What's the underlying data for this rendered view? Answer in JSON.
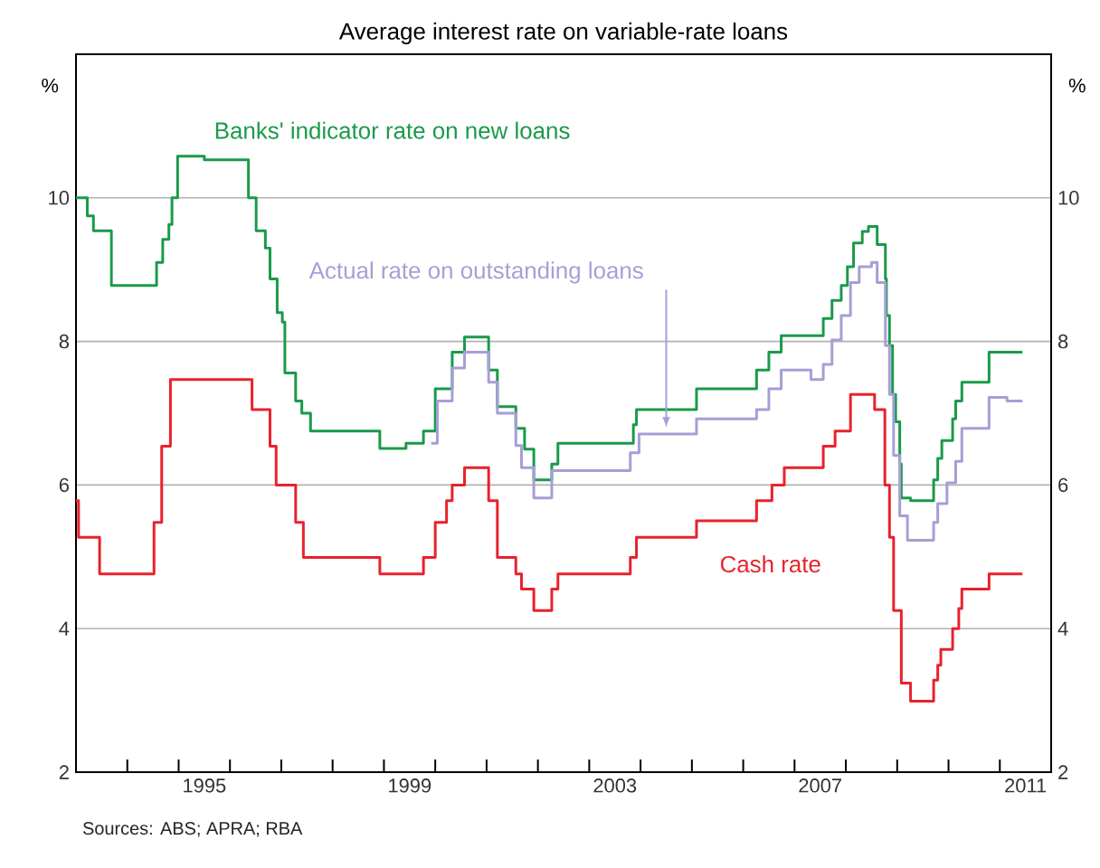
{
  "chart_data": {
    "type": "step",
    "title": "Average interest rate on variable-rate loans",
    "ylabel": "%",
    "y2label": "%",
    "xlim": [
      1993,
      2012
    ],
    "xticks": [
      {
        "value": 1994,
        "label": null
      },
      {
        "value": 1995,
        "label": null
      },
      {
        "value": 1995.5,
        "label": "1995"
      },
      {
        "value": 1996,
        "label": null
      },
      {
        "value": 1997,
        "label": null
      },
      {
        "value": 1998,
        "label": null
      },
      {
        "value": 1999,
        "label": null
      },
      {
        "value": 1999.5,
        "label": "1999"
      },
      {
        "value": 2000,
        "label": null
      },
      {
        "value": 2001,
        "label": null
      },
      {
        "value": 2002,
        "label": null
      },
      {
        "value": 2003,
        "label": null
      },
      {
        "value": 2003.5,
        "label": "2003"
      },
      {
        "value": 2004,
        "label": null
      },
      {
        "value": 2005,
        "label": null
      },
      {
        "value": 2006,
        "label": null
      },
      {
        "value": 2007,
        "label": null
      },
      {
        "value": 2007.5,
        "label": "2007"
      },
      {
        "value": 2008,
        "label": null
      },
      {
        "value": 2009,
        "label": null
      },
      {
        "value": 2010,
        "label": null
      },
      {
        "value": 2011,
        "label": null
      },
      {
        "value": 2011.5,
        "label": "2011"
      }
    ],
    "ylim": [
      2,
      12
    ],
    "yticks": [
      2,
      4,
      6,
      8,
      10
    ],
    "y2lim": [
      2,
      12
    ],
    "y2ticks": [
      2,
      4,
      6,
      8,
      10
    ],
    "grid": "y",
    "series": [
      {
        "name": "Banks' indicator rate on new loans",
        "color": "#1a9a4a",
        "x": [
          1993.0,
          1993.22,
          1993.34,
          1993.69,
          1994.57,
          1994.69,
          1994.81,
          1994.87,
          1994.98,
          1995.5,
          1996.36,
          1996.51,
          1996.69,
          1996.78,
          1996.92,
          1997.02,
          1997.07,
          1997.28,
          1997.4,
          1997.57,
          1998.92,
          1999.43,
          1999.77,
          2000.0,
          2000.33,
          2000.57,
          2001.04,
          2001.21,
          2001.57,
          2001.74,
          2001.92,
          2002.27,
          2002.39,
          2003.86,
          2003.92,
          2005.09,
          2006.26,
          2006.5,
          2006.74,
          2007.56,
          2007.73,
          2007.91,
          2008.03,
          2008.15,
          2008.32,
          2008.44,
          2008.61,
          2008.77,
          2008.79,
          2008.85,
          2008.91,
          2008.97,
          2009.05,
          2009.08,
          2009.26,
          2009.71,
          2009.79,
          2009.87,
          2010.08,
          2010.14,
          2010.26,
          2010.79,
          2011.44
        ],
        "values": [
          10.0,
          9.75,
          9.54,
          8.78,
          9.1,
          9.42,
          9.63,
          10.0,
          10.58,
          10.53,
          10.0,
          9.54,
          9.3,
          8.87,
          8.4,
          8.27,
          7.56,
          7.17,
          7.0,
          6.75,
          6.51,
          6.58,
          6.75,
          7.34,
          7.85,
          8.06,
          7.6,
          7.09,
          6.79,
          6.5,
          6.07,
          6.29,
          6.58,
          6.84,
          7.05,
          7.34,
          7.6,
          7.85,
          8.08,
          8.32,
          8.57,
          8.78,
          9.04,
          9.37,
          9.53,
          9.6,
          9.35,
          8.87,
          8.36,
          7.94,
          7.26,
          6.88,
          6.29,
          5.82,
          5.78,
          6.07,
          6.37,
          6.62,
          6.92,
          7.17,
          7.43,
          7.85,
          7.85
        ]
      },
      {
        "name": "Actual rate on outstanding loans",
        "color": "#a59fd6",
        "x": [
          1999.92,
          2000.04,
          2000.33,
          2000.57,
          2001.04,
          2001.21,
          2001.57,
          2001.68,
          2001.92,
          2002.27,
          2003.8,
          2003.97,
          2005.09,
          2006.26,
          2006.5,
          2006.74,
          2007.32,
          2007.56,
          2007.73,
          2007.91,
          2008.09,
          2008.26,
          2008.5,
          2008.61,
          2008.77,
          2008.85,
          2008.93,
          2009.05,
          2009.2,
          2009.71,
          2009.79,
          2009.97,
          2010.14,
          2010.26,
          2010.79,
          2011.14,
          2011.44
        ],
        "values": [
          6.58,
          7.17,
          7.63,
          7.85,
          7.43,
          7.0,
          6.55,
          6.24,
          5.82,
          6.2,
          6.45,
          6.71,
          6.92,
          7.05,
          7.34,
          7.6,
          7.47,
          7.68,
          8.02,
          8.36,
          8.82,
          9.04,
          9.1,
          8.82,
          7.94,
          7.26,
          6.41,
          5.57,
          5.23,
          5.48,
          5.74,
          6.03,
          6.33,
          6.79,
          7.22,
          7.17,
          7.17
        ]
      },
      {
        "name": "Cash rate",
        "color": "#e8222d",
        "x": [
          1993.0,
          1993.05,
          1993.46,
          1994.52,
          1994.67,
          1994.84,
          1996.43,
          1996.78,
          1996.9,
          1997.28,
          1997.43,
          1998.92,
          1999.77,
          2000.0,
          2000.22,
          2000.33,
          2000.57,
          2001.04,
          2001.21,
          2001.57,
          2001.68,
          2001.92,
          2002.27,
          2002.39,
          2003.8,
          2003.92,
          2005.09,
          2006.26,
          2006.56,
          2006.8,
          2007.56,
          2007.79,
          2008.09,
          2008.56,
          2008.76,
          2008.85,
          2008.93,
          2009.08,
          2009.26,
          2009.71,
          2009.79,
          2009.85,
          2010.08,
          2010.2,
          2010.26,
          2010.79,
          2011.44
        ],
        "values": [
          5.78,
          5.27,
          4.76,
          5.48,
          6.54,
          7.47,
          7.05,
          6.54,
          6.0,
          5.48,
          4.99,
          4.76,
          4.99,
          5.48,
          5.78,
          6.0,
          6.24,
          5.78,
          4.99,
          4.76,
          4.55,
          4.25,
          4.55,
          4.76,
          4.99,
          5.27,
          5.5,
          5.78,
          6.0,
          6.24,
          6.54,
          6.75,
          7.26,
          7.05,
          6.0,
          5.27,
          4.25,
          3.24,
          2.99,
          3.28,
          3.49,
          3.71,
          4.0,
          4.28,
          4.55,
          4.76,
          4.76
        ]
      }
    ],
    "annotations": [
      "Sources: ABS; APRA; RBA"
    ]
  }
}
